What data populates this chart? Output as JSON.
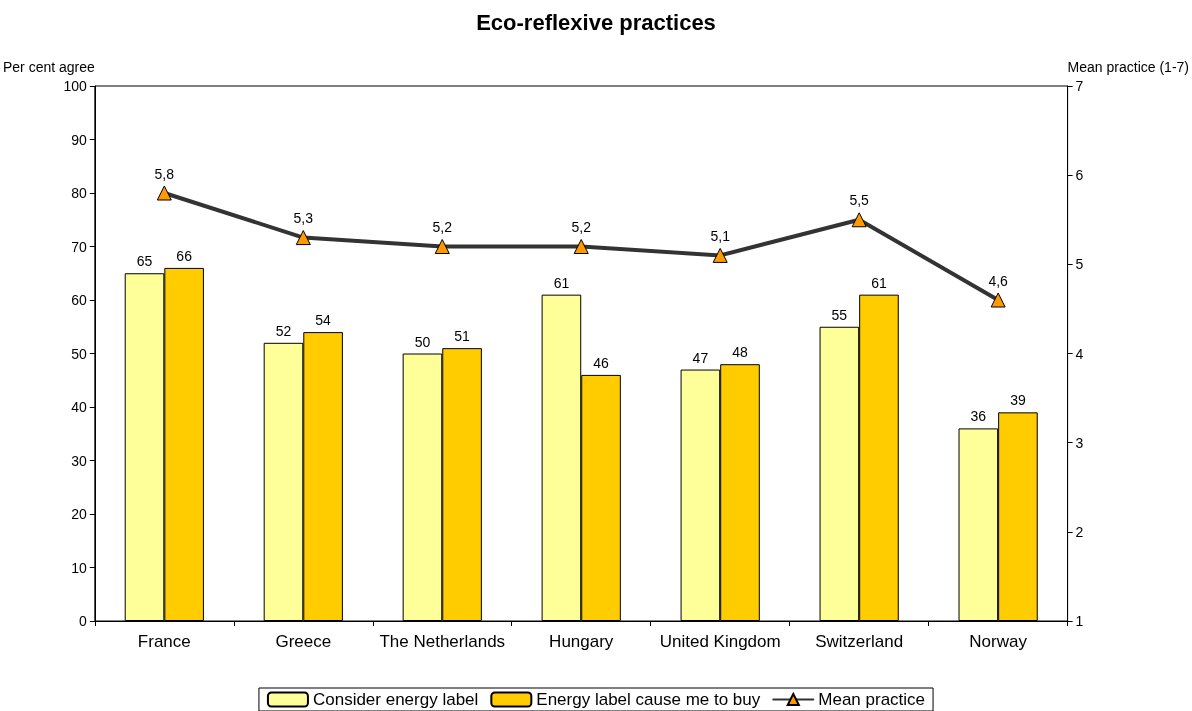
{
  "chart_data": {
    "type": "bar",
    "title": "Eco-reflexive practices",
    "ylabel": "Per cent agree",
    "y2label": "Mean practice (1-7)",
    "categories": [
      "France",
      "Greece",
      "The Netherlands",
      "Hungary",
      "United Kingdom",
      "Switzerland",
      "Norway"
    ],
    "series": [
      {
        "name": "Consider energy label",
        "color": "#ffff99",
        "values": [
          65,
          52,
          50,
          61,
          47,
          55,
          36
        ]
      },
      {
        "name": "Energy label cause me to buy",
        "color": "#ffcc00",
        "values": [
          66,
          54,
          51,
          46,
          48,
          61,
          39
        ]
      },
      {
        "name": "Mean practice",
        "type": "line",
        "axis": "y2",
        "color": "#333333",
        "marker": "triangle",
        "values": [
          5.8,
          5.3,
          5.2,
          5.2,
          5.1,
          5.5,
          4.6
        ],
        "value_labels": [
          "5,8",
          "5,3",
          "5,2",
          "5,2",
          "5,1",
          "5,5",
          "4,6"
        ]
      }
    ],
    "ylim": [
      0,
      100
    ],
    "yticks": [
      0,
      10,
      20,
      30,
      40,
      50,
      60,
      70,
      80,
      90,
      100
    ],
    "y2lim": [
      1,
      7
    ],
    "y2ticks": [
      1,
      2,
      3,
      4,
      5,
      6,
      7
    ],
    "data_labels": true,
    "grid": false,
    "legend": "bottom"
  }
}
